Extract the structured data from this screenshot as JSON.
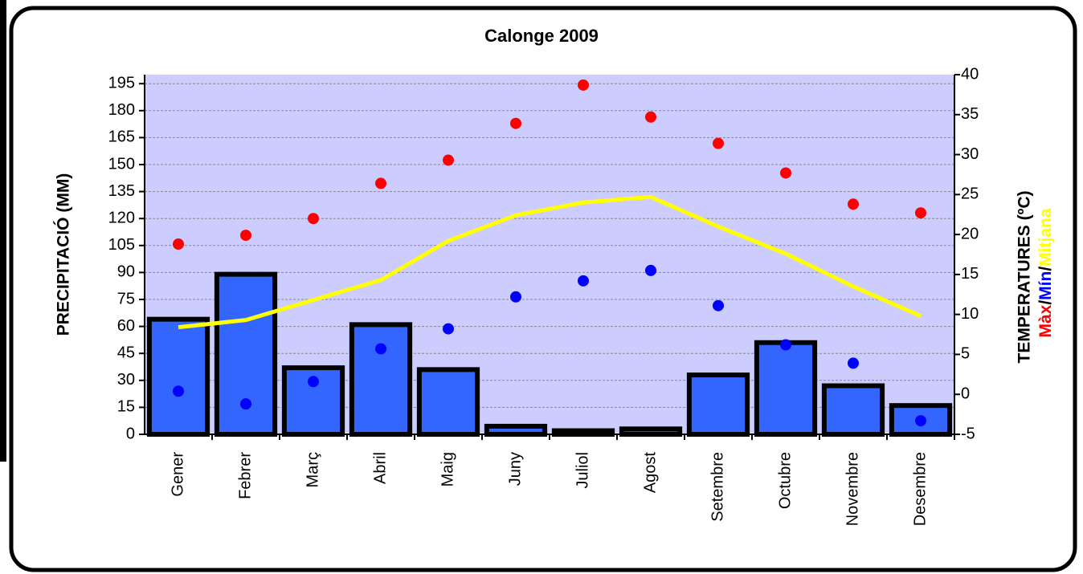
{
  "chart_data": {
    "type": "bar",
    "title": "Calonge 2009",
    "y_label": "PRECIPITACIÓ (MM)",
    "y2_label": "TEMPERATURES (ºC)",
    "y2_label_separator": "/",
    "categories": [
      "Gener",
      "Febrer",
      "Març",
      "Abril",
      "Maig",
      "Juny",
      "Juliol",
      "Agost",
      "Setembre",
      "Octubre",
      "Novembre",
      "Desembre"
    ],
    "values": [
      64,
      89,
      37,
      61,
      36,
      4.5,
      2,
      3,
      33,
      51,
      27,
      16
    ],
    "color": "#3366ff",
    "series": [
      {
        "name": "Màx",
        "color": "#ff0000",
        "type": "scatter",
        "axis": "y2",
        "values": [
          18.8,
          19.9,
          22.0,
          26.4,
          29.3,
          33.9,
          38.7,
          34.7,
          31.4,
          27.7,
          23.8,
          22.7
        ]
      },
      {
        "name": "Mín",
        "color": "#0000ff",
        "type": "scatter",
        "axis": "y2",
        "values": [
          0.4,
          -1.2,
          1.6,
          5.7,
          8.2,
          12.2,
          14.2,
          15.5,
          11.1,
          6.2,
          3.9,
          -3.3
        ]
      },
      {
        "name": "Mitjana",
        "color": "#ffff00",
        "type": "line",
        "axis": "y2",
        "values": [
          8.4,
          9.3,
          11.8,
          14.3,
          19.2,
          22.4,
          24.0,
          24.7,
          21.0,
          17.6,
          13.5,
          9.8
        ]
      }
    ],
    "ylim": [
      0,
      200
    ],
    "yticks": [
      0,
      15,
      30,
      45,
      60,
      75,
      90,
      105,
      120,
      135,
      150,
      165,
      180,
      195
    ],
    "y2lim": [
      -5,
      40
    ],
    "y2ticks": [
      -5,
      0,
      5,
      10,
      15,
      20,
      25,
      30,
      35,
      40
    ],
    "grid": true
  }
}
